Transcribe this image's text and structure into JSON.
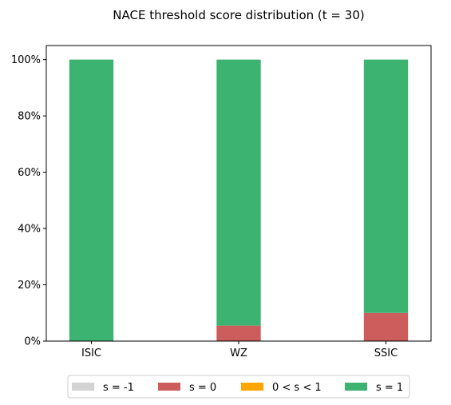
{
  "chart_data": {
    "type": "bar",
    "stacked": true,
    "title": "NACE threshold score distribution (t = 30)",
    "xlabel": "",
    "ylabel": "",
    "categories": [
      "ISIC",
      "WZ",
      "SSIC"
    ],
    "y_unit": "%",
    "ylim": [
      0,
      105
    ],
    "yticks": [
      0,
      20,
      40,
      60,
      80,
      100
    ],
    "ytick_labels": [
      "0%",
      "20%",
      "40%",
      "60%",
      "80%",
      "100%"
    ],
    "grid": false,
    "legend_position": "bottom",
    "series": [
      {
        "name": "s = -1",
        "color": "#d3d3d3",
        "values": [
          0,
          0,
          0
        ]
      },
      {
        "name": "s = 0",
        "color": "#cd5c5c",
        "values": [
          0,
          5.5,
          10
        ]
      },
      {
        "name": "0 < s < 1",
        "color": "#ffa500",
        "values": [
          0,
          0,
          0
        ]
      },
      {
        "name": "s = 1",
        "color": "#3cb371",
        "values": [
          100,
          94.5,
          90
        ]
      }
    ]
  }
}
